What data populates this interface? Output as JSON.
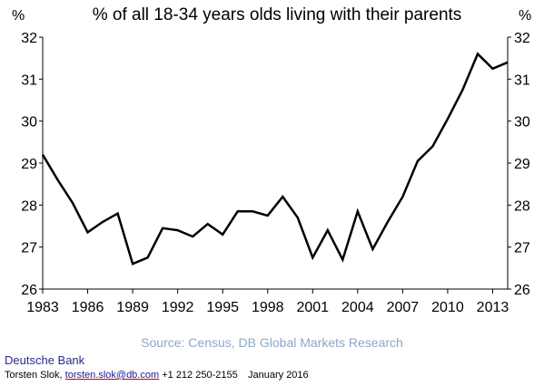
{
  "chart_data": {
    "type": "line",
    "title": "% of all 18-34 years olds living with their parents",
    "y_unit_left": "%",
    "y_unit_right": "%",
    "ylim": [
      26,
      32
    ],
    "yticks": [
      26,
      27,
      28,
      29,
      30,
      31,
      32
    ],
    "xlim": [
      1983,
      2014
    ],
    "xticks": [
      1983,
      1986,
      1989,
      1992,
      1995,
      1998,
      2001,
      2004,
      2007,
      2010,
      2013
    ],
    "grid": false,
    "legend": "none",
    "line_color": "#000000",
    "series": [
      {
        "x": [
          1983,
          1984,
          1985,
          1986,
          1987,
          1988,
          1989,
          1990,
          1991,
          1992,
          1993,
          1994,
          1995,
          1996,
          1997,
          1998,
          1999,
          2000,
          2001,
          2002,
          2003,
          2004,
          2005,
          2006,
          2007,
          2008,
          2009,
          2010,
          2011,
          2012,
          2013,
          2014
        ],
        "values": [
          29.2,
          28.6,
          28.05,
          27.35,
          27.6,
          27.8,
          26.6,
          26.75,
          27.45,
          27.4,
          27.25,
          27.55,
          27.3,
          27.85,
          27.85,
          27.75,
          28.2,
          27.7,
          26.75,
          27.4,
          26.7,
          27.85,
          26.95,
          27.6,
          28.2,
          29.05,
          29.4,
          30.05,
          30.75,
          31.6,
          31.25,
          31.4
        ]
      }
    ]
  },
  "source": "Source: Census, DB Global Markets Research",
  "footer": {
    "org": "Deutsche Bank",
    "author": "Torsten Slok,",
    "email": "torsten.slok@db.com",
    "phone": "+1 212 250-2155",
    "date": "January 2016"
  }
}
